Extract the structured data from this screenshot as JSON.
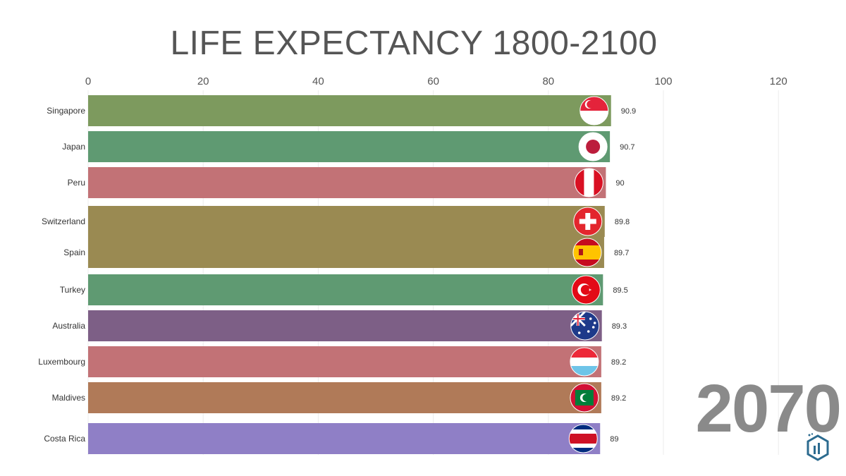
{
  "title": "LIFE EXPECTANCY 1800-2100",
  "year": "2070",
  "chart_data": {
    "type": "bar",
    "orientation": "horizontal",
    "title": "LIFE EXPECTANCY 1800-2100",
    "xlim": [
      0,
      120
    ],
    "xticks": [
      0,
      20,
      40,
      60,
      80,
      100,
      120
    ],
    "grid": true,
    "categories": [
      "Singapore",
      "Japan",
      "Peru",
      "Switzerland",
      "Spain",
      "Turkey",
      "Australia",
      "Luxembourg",
      "Maldives",
      "Costa Rica"
    ],
    "values": [
      90.9,
      90.7,
      90,
      89.8,
      89.7,
      89.5,
      89.3,
      89.2,
      89.2,
      89
    ],
    "value_labels": [
      "90.9",
      "90.7",
      "90",
      "89.8",
      "89.7",
      "89.5",
      "89.3",
      "89.2",
      "89.2",
      "89"
    ],
    "colors": [
      "#7d9a5e",
      "#5f9a72",
      "#c27276",
      "#9a8a52",
      "#9a8a52",
      "#5f9a72",
      "#7d5f86",
      "#c27276",
      "#b07a58",
      "#8f7fc6"
    ],
    "flags": [
      "singapore-flag",
      "japan-flag",
      "peru-flag",
      "switzerland-flag",
      "spain-flag",
      "turkey-flag",
      "australia-flag",
      "luxembourg-flag",
      "maldives-flag",
      "costa-rica-flag"
    ]
  }
}
